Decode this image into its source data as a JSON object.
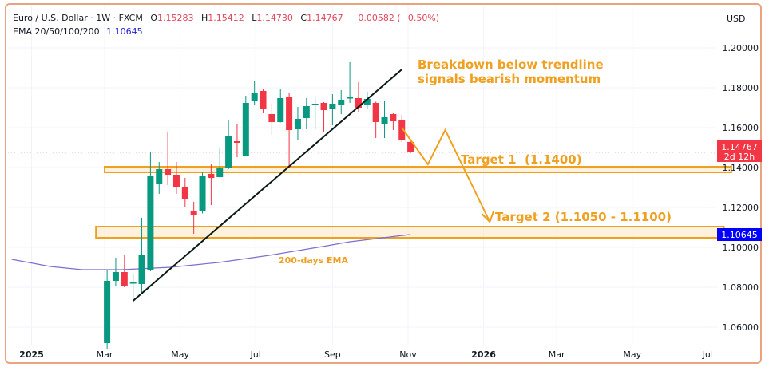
{
  "header": {
    "symbol": "Euro / U.S. Dollar · 1W · FXCM",
    "o_label": "O",
    "o_value": "1.15283",
    "h_label": "H",
    "h_value": "1.15412",
    "l_label": "L",
    "l_value": "1.14730",
    "c_label": "C",
    "c_value": "1.14767",
    "change": "−0.00582 (−0.50%)",
    "ema_label": "EMA 20/50/100/200",
    "ema_value": "1.10645",
    "currency": "USD"
  },
  "colors": {
    "up": "#089981",
    "down": "#f23645",
    "ema": "#7b6fd0",
    "annotation": "#f0a020",
    "trendline": "#0b1a14",
    "last_price_tag": "#f23645",
    "ema_tag": "#0000ff",
    "frame": "#e9a37f"
  },
  "chart_data": {
    "type": "candlestick",
    "title": "Euro / U.S. Dollar · 1W · FXCM",
    "ylim": [
      1.045,
      1.215
    ],
    "xlim": [
      "2024-12-16",
      "2026-07-28"
    ],
    "grid": true,
    "y_ticks": [
      "1.20000",
      "1.18000",
      "1.16000",
      "1.14000",
      "1.12000",
      "1.10000",
      "1.08000",
      "1.06000"
    ],
    "x_ticks": [
      {
        "date": "2025-01-01",
        "label": "2025",
        "bold": true
      },
      {
        "date": "2025-03-01",
        "label": "Mar"
      },
      {
        "date": "2025-05-01",
        "label": "May"
      },
      {
        "date": "2025-07-01",
        "label": "Jul"
      },
      {
        "date": "2025-09-01",
        "label": "Sep"
      },
      {
        "date": "2025-11-01",
        "label": "Nov"
      },
      {
        "date": "2026-01-01",
        "label": "2026",
        "bold": true
      },
      {
        "date": "2026-03-01",
        "label": "Mar"
      },
      {
        "date": "2026-05-01",
        "label": "May"
      },
      {
        "date": "2026-07-01",
        "label": "Jul"
      }
    ],
    "candles": [
      [
        "2025-03-03",
        1.052,
        1.0888,
        1.049,
        1.0832
      ],
      [
        "2025-03-10",
        1.0832,
        1.0948,
        1.0808,
        1.0876
      ],
      [
        "2025-03-17",
        1.0876,
        1.096,
        1.08,
        1.0808
      ],
      [
        "2025-03-24",
        1.0818,
        1.0868,
        1.0732,
        1.0826
      ],
      [
        "2025-03-31",
        1.0816,
        1.1148,
        1.0772,
        1.0964
      ],
      [
        "2025-04-07",
        1.0888,
        1.148,
        1.088,
        1.136
      ],
      [
        "2025-04-14",
        1.132,
        1.1428,
        1.1268,
        1.1392
      ],
      [
        "2025-04-21",
        1.1392,
        1.1576,
        1.1312,
        1.1364
      ],
      [
        "2025-04-28",
        1.1364,
        1.1428,
        1.1268,
        1.13
      ],
      [
        "2025-05-05",
        1.1304,
        1.1348,
        1.12,
        1.1244
      ],
      [
        "2025-05-12",
        1.1184,
        1.1228,
        1.1068,
        1.1164
      ],
      [
        "2025-05-19",
        1.118,
        1.138,
        1.117,
        1.136
      ],
      [
        "2025-05-26",
        1.1368,
        1.142,
        1.1212,
        1.1348
      ],
      [
        "2025-06-02",
        1.1352,
        1.15,
        1.135,
        1.1396
      ],
      [
        "2025-06-09",
        1.1396,
        1.1636,
        1.1392,
        1.1556
      ],
      [
        "2025-06-16",
        1.1532,
        1.162,
        1.1452,
        1.1524
      ],
      [
        "2025-06-23",
        1.1456,
        1.176,
        1.1456,
        1.1724
      ],
      [
        "2025-06-30",
        1.1732,
        1.1836,
        1.1712,
        1.1776
      ],
      [
        "2025-07-07",
        1.1784,
        1.1792,
        1.1672,
        1.1692
      ],
      [
        "2025-07-14",
        1.1668,
        1.172,
        1.1564,
        1.1628
      ],
      [
        "2025-07-21",
        1.1628,
        1.1792,
        1.1626,
        1.1748
      ],
      [
        "2025-07-28",
        1.1756,
        1.1776,
        1.14,
        1.1588
      ],
      [
        "2025-08-04",
        1.1592,
        1.1704,
        1.1536,
        1.1644
      ],
      [
        "2025-08-11",
        1.1648,
        1.1748,
        1.1592,
        1.1708
      ],
      [
        "2025-08-18",
        1.1718,
        1.1748,
        1.1592,
        1.172
      ],
      [
        "2025-08-25",
        1.1724,
        1.1728,
        1.158,
        1.1688
      ],
      [
        "2025-09-01",
        1.1696,
        1.1768,
        1.1612,
        1.172
      ],
      [
        "2025-09-08",
        1.1712,
        1.1788,
        1.1668,
        1.174
      ],
      [
        "2025-09-15",
        1.1748,
        1.1928,
        1.1724,
        1.1752
      ],
      [
        "2025-09-22",
        1.1748,
        1.1828,
        1.168,
        1.17
      ],
      [
        "2025-09-29",
        1.1712,
        1.178,
        1.1692,
        1.1744
      ],
      [
        "2025-10-06",
        1.1724,
        1.173,
        1.1548,
        1.1628
      ],
      [
        "2025-10-13",
        1.162,
        1.1732,
        1.1548,
        1.1652
      ],
      [
        "2025-10-20",
        1.1668,
        1.1672,
        1.1588,
        1.1632
      ],
      [
        "2025-10-27",
        1.164,
        1.1664,
        1.1528,
        1.1536
      ],
      [
        "2025-11-03",
        1.15283,
        1.15412,
        1.1473,
        1.14767
      ]
    ],
    "ema200": {
      "name": "200-days EMA",
      "points": [
        [
          "2024-12-16",
          1.094
        ],
        [
          "2025-01-16",
          1.0904
        ],
        [
          "2025-02-11",
          1.0888
        ],
        [
          "2025-03-15",
          1.0888
        ],
        [
          "2025-04-23",
          1.09
        ],
        [
          "2025-06-01",
          1.0924
        ],
        [
          "2025-07-12",
          1.096
        ],
        [
          "2025-08-24",
          1.1004
        ],
        [
          "2025-09-15",
          1.1028
        ],
        [
          "2025-11-03",
          1.10645
        ]
      ]
    },
    "last_price": {
      "value": "1.14767",
      "countdown": "2d 12h"
    },
    "ema_tag": "1.10645",
    "trendline": [
      [
        "2025-03-24",
        1.0732
      ],
      [
        "2025-10-27",
        1.1892
      ]
    ],
    "zones": [
      {
        "label": "Target 1  (1.1400)",
        "from": "2025-03-01",
        "to": "2026-07-20",
        "low": 1.1376,
        "high": 1.1404
      },
      {
        "label": "Target 2 (1.1050 - 1.1100)",
        "from": "2025-02-22",
        "to": "2026-07-14",
        "low": 1.1048,
        "high": 1.1104
      }
    ],
    "projection": [
      [
        "2025-10-27",
        1.16
      ],
      [
        "2025-11-17",
        1.1416
      ],
      [
        "2025-12-01",
        1.1588
      ],
      [
        "2026-01-06",
        1.1128
      ]
    ],
    "annotations": {
      "headline": [
        "Breakdown below trendline",
        "signals bearish momentum"
      ],
      "ema_label": "200-days EMA"
    }
  }
}
